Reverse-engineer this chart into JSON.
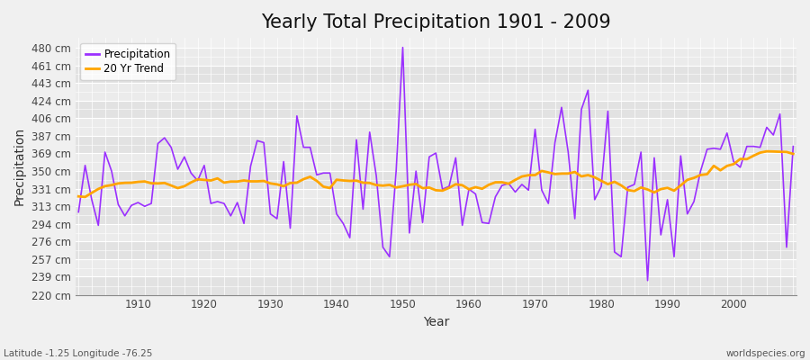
{
  "title": "Yearly Total Precipitation 1901 - 2009",
  "xlabel": "Year",
  "ylabel": "Precipitation",
  "subtitle": "Latitude -1.25 Longitude -76.25",
  "watermark": "worldspecies.org",
  "years": [
    1901,
    1902,
    1903,
    1904,
    1905,
    1906,
    1907,
    1908,
    1909,
    1910,
    1911,
    1912,
    1913,
    1914,
    1915,
    1916,
    1917,
    1918,
    1919,
    1920,
    1921,
    1922,
    1923,
    1924,
    1925,
    1926,
    1927,
    1928,
    1929,
    1930,
    1931,
    1932,
    1933,
    1934,
    1935,
    1936,
    1937,
    1938,
    1939,
    1940,
    1941,
    1942,
    1943,
    1944,
    1945,
    1946,
    1947,
    1948,
    1949,
    1950,
    1951,
    1952,
    1953,
    1954,
    1955,
    1956,
    1957,
    1958,
    1959,
    1960,
    1961,
    1962,
    1963,
    1964,
    1965,
    1966,
    1967,
    1968,
    1969,
    1970,
    1971,
    1972,
    1973,
    1974,
    1975,
    1976,
    1977,
    1978,
    1979,
    1980,
    1981,
    1982,
    1983,
    1984,
    1985,
    1986,
    1987,
    1988,
    1989,
    1990,
    1991,
    1992,
    1993,
    1994,
    1995,
    1996,
    1997,
    1998,
    1999,
    2000,
    2001,
    2002,
    2003,
    2004,
    2005,
    2006,
    2007,
    2008,
    2009
  ],
  "precip": [
    307,
    356,
    320,
    293,
    370,
    350,
    315,
    303,
    314,
    317,
    313,
    316,
    379,
    385,
    375,
    352,
    365,
    348,
    340,
    356,
    316,
    318,
    316,
    303,
    317,
    295,
    355,
    382,
    380,
    305,
    300,
    360,
    290,
    408,
    375,
    375,
    346,
    348,
    348,
    305,
    295,
    280,
    383,
    310,
    391,
    345,
    270,
    260,
    350,
    480,
    285,
    350,
    296,
    365,
    369,
    331,
    334,
    364,
    293,
    331,
    326,
    296,
    295,
    323,
    335,
    337,
    328,
    336,
    330,
    394,
    330,
    316,
    380,
    417,
    370,
    300,
    415,
    435,
    320,
    334,
    413,
    265,
    260,
    333,
    336,
    370,
    235,
    364,
    283,
    320,
    260,
    366,
    305,
    318,
    350,
    373,
    374,
    373,
    390,
    360,
    354,
    376,
    376,
    375,
    396,
    388,
    410,
    270,
    376
  ],
  "precip_color": "#9B30FF",
  "trend_color": "#FFA500",
  "bg_color": "#F0F0F0",
  "plot_bg_color": "#F0F0F0",
  "grid_major_color": "#FFFFFF",
  "grid_minor_color": "#E0E0E0",
  "band_color_dark": "#E2E2E2",
  "band_color_light": "#EBEBEB",
  "ylim": [
    220,
    490
  ],
  "yticks": [
    220,
    239,
    257,
    276,
    294,
    313,
    331,
    350,
    369,
    387,
    406,
    424,
    443,
    461,
    480
  ],
  "xticks": [
    1910,
    1920,
    1930,
    1940,
    1950,
    1960,
    1970,
    1980,
    1990,
    2000
  ],
  "legend_labels": [
    "Precipitation",
    "20 Yr Trend"
  ],
  "title_fontsize": 15,
  "axis_fontsize": 8.5,
  "label_fontsize": 10
}
